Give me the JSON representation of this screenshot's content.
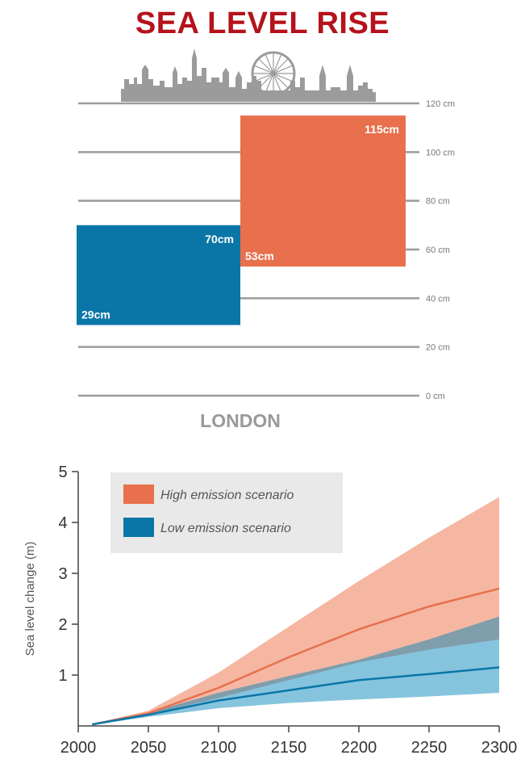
{
  "title": "SEA LEVEL RISE",
  "colors": {
    "title": "#b5121b",
    "high": "#e8704d",
    "high_band": "#f5b7a2",
    "low": "#0a76a8",
    "low_band": "#86c4de",
    "overlap": "#7f99a5",
    "skyline": "#9b9b9b",
    "grid": "#9b9b9b",
    "legend_bg": "#e9e9e9"
  },
  "skyline_icon": "london-skyline-icon",
  "chart_data": [
    {
      "type": "bar",
      "subtype": "floating-range",
      "xlabel": "LONDON",
      "ylim": [
        0,
        120
      ],
      "yticks": [
        0,
        20,
        40,
        60,
        80,
        100,
        120
      ],
      "ytick_labels": [
        "0 cm",
        "20 cm",
        "40 cm",
        "60 cm",
        "80 cm",
        "100 cm",
        "120 cm"
      ],
      "grid": true,
      "series": [
        {
          "key": "low",
          "low": 29,
          "high": 70,
          "low_label": "29cm",
          "high_label": "70cm"
        },
        {
          "key": "high",
          "low": 53,
          "high": 115,
          "low_label": "53cm",
          "high_label": "115cm"
        }
      ]
    },
    {
      "type": "area",
      "ylabel": "Sea level change (m)",
      "xlim": [
        2000,
        2300
      ],
      "ylim": [
        0,
        5
      ],
      "xticks": [
        2000,
        2050,
        2100,
        2150,
        2200,
        2250,
        2300
      ],
      "yticks": [
        1,
        2,
        3,
        4,
        5
      ],
      "legend_position": "top-left",
      "x": [
        2010,
        2050,
        2100,
        2150,
        2200,
        2250,
        2300
      ],
      "series": [
        {
          "name": "High emission scenario",
          "key": "high",
          "mean": [
            0.03,
            0.25,
            0.75,
            1.35,
            1.9,
            2.35,
            2.7
          ],
          "lower": [
            0.02,
            0.22,
            0.55,
            0.9,
            1.25,
            1.5,
            1.7
          ],
          "upper": [
            0.04,
            0.3,
            1.05,
            1.95,
            2.85,
            3.7,
            4.5
          ]
        },
        {
          "name": "Low emission scenario",
          "key": "low",
          "mean": [
            0.03,
            0.22,
            0.5,
            0.7,
            0.9,
            1.02,
            1.15
          ],
          "lower": [
            0.02,
            0.18,
            0.35,
            0.45,
            0.52,
            0.58,
            0.65
          ],
          "upper": [
            0.04,
            0.26,
            0.65,
            0.98,
            1.3,
            1.7,
            2.15
          ]
        }
      ]
    }
  ]
}
